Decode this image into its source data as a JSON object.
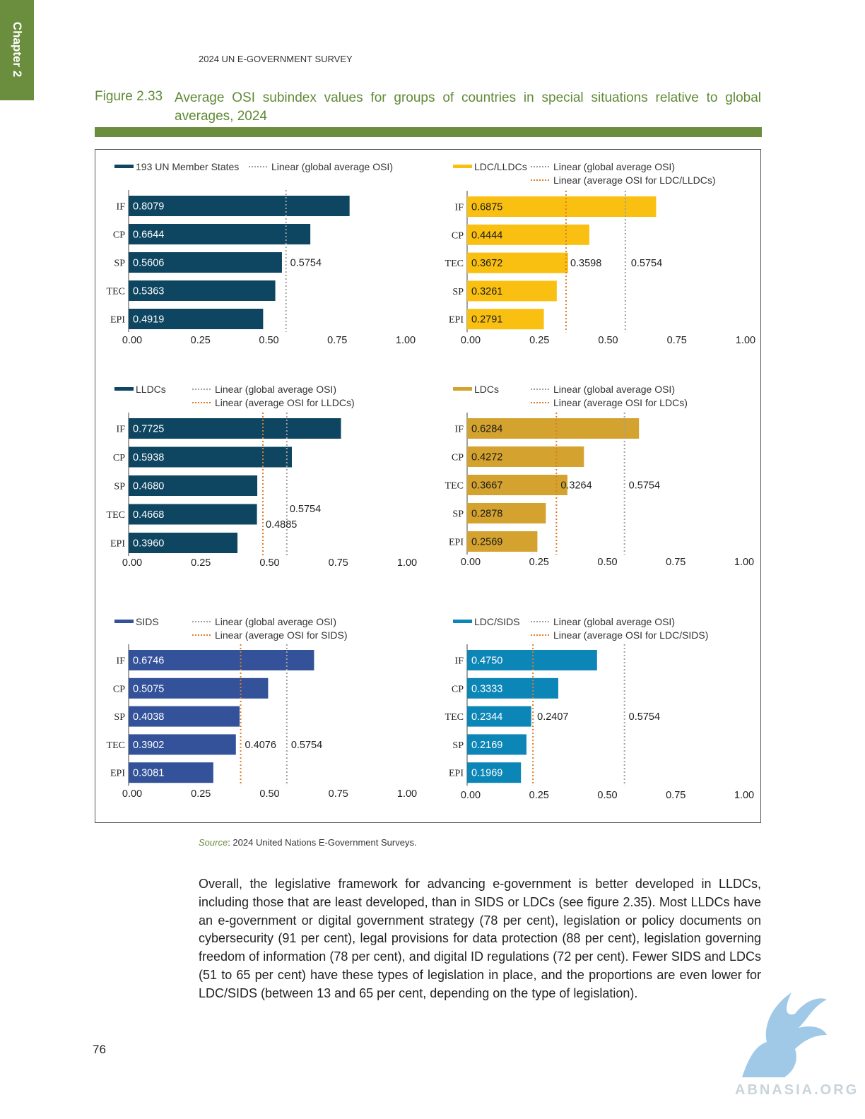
{
  "chapter_label": "Chapter 2",
  "running_head": "2024 UN E-GOVERNMENT SURVEY",
  "figure": {
    "number": "Figure 2.33",
    "title": "Average OSI subindex values for groups of countries in special situations relative to global averages, 2024"
  },
  "source": {
    "label": "Source",
    "text": ": 2024 United Nations E-Government Surveys."
  },
  "body_text": "Overall, the legislative framework for advancing e-government is better developed in LLDCs, including those that are least developed, than in SIDS or LDCs (see figure 2.35). Most LLDCs have an e-government or digital government strategy (78 per cent), legislation or policy documents on cybersecurity (91 per cent), legal provisions for data protection (88 per cent), legislation governing freedom of information (78 per cent), and digital ID regulations (72 per cent). Fewer SIDS and LDCs (51 to 65 per cent) have these types of legislation in place, and the proportions are even lower for LDC/SIDS (between 13 and 65 per cent, depending on the type of legislation).",
  "page_number": "76",
  "watermark": "ABNASIA.ORG",
  "chart_data": [
    {
      "type": "bar",
      "orientation": "horizontal",
      "series_name": "193 UN Member States",
      "color": "#0e4561",
      "categories": [
        "IF",
        "CP",
        "SP",
        "TEC",
        "EPI"
      ],
      "values": [
        0.8079,
        0.6644,
        0.5606,
        0.5363,
        0.4919
      ],
      "value_labels": [
        "0.8079",
        "0.6644",
        "0.5606",
        "0.5363",
        "0.4919"
      ],
      "xlim": [
        0,
        1
      ],
      "xticks": [
        "0.00",
        "0.25",
        "0.50",
        "0.75",
        "1.00"
      ],
      "reference_lines": [
        {
          "name": "Linear (global average OSI)",
          "value": 0.5754,
          "label": "0.5754",
          "color": "#a0a0a0"
        }
      ]
    },
    {
      "type": "bar",
      "orientation": "horizontal",
      "series_name": "LDC/LLDCs",
      "color": "#f9c012",
      "categories": [
        "IF",
        "CP",
        "TEC",
        "SP",
        "EPI"
      ],
      "values": [
        0.6875,
        0.4444,
        0.3672,
        0.3261,
        0.2791
      ],
      "value_labels": [
        "0.6875",
        "0.4444",
        "0.3672",
        "0.3261",
        "0.2791"
      ],
      "xlim": [
        0,
        1
      ],
      "xticks": [
        "0.00",
        "0.25",
        "0.50",
        "0.75",
        "1.00"
      ],
      "reference_lines": [
        {
          "name": "Linear (global average OSI)",
          "value": 0.5754,
          "label": "0.5754",
          "color": "#a0a0a0"
        },
        {
          "name": "Linear (average OSI for LDC/LLDCs)",
          "value": 0.3598,
          "label": "0.3598",
          "color": "#e07b26"
        }
      ]
    },
    {
      "type": "bar",
      "orientation": "horizontal",
      "series_name": "LLDCs",
      "color": "#0e4561",
      "categories": [
        "IF",
        "CP",
        "SP",
        "TEC",
        "EPI"
      ],
      "values": [
        0.7725,
        0.5938,
        0.468,
        0.4668,
        0.396
      ],
      "value_labels": [
        "0.7725",
        "0.5938",
        "0.4680",
        "0.4668",
        "0.3960"
      ],
      "xlim": [
        0,
        1
      ],
      "xticks": [
        "0.00",
        "0.25",
        "0.50",
        "0.75",
        "1.00"
      ],
      "reference_lines": [
        {
          "name": "Linear (global average OSI)",
          "value": 0.5754,
          "label": "0.5754",
          "color": "#a0a0a0"
        },
        {
          "name": "Linear (average OSI for LLDCs)",
          "value": 0.4885,
          "label": "0.4885",
          "color": "#e07b26"
        }
      ]
    },
    {
      "type": "bar",
      "orientation": "horizontal",
      "series_name": "LDCs",
      "color": "#d4a22f",
      "categories": [
        "IF",
        "CP",
        "TEC",
        "SP",
        "EPI"
      ],
      "values": [
        0.6284,
        0.4272,
        0.3667,
        0.2878,
        0.2569
      ],
      "value_labels": [
        "0.6284",
        "0.4272",
        "0.3667",
        "0.2878",
        "0.2569"
      ],
      "xlim": [
        0,
        1
      ],
      "xticks": [
        "0.00",
        "0.25",
        "0.50",
        "0.75",
        "1.00"
      ],
      "reference_lines": [
        {
          "name": "Linear (global average OSI)",
          "value": 0.5754,
          "label": "0.5754",
          "color": "#a0a0a0"
        },
        {
          "name": "Linear (average OSI for LDCs)",
          "value": 0.3264,
          "label": "0.3264",
          "color": "#e07b26"
        }
      ]
    },
    {
      "type": "bar",
      "orientation": "horizontal",
      "series_name": "SIDS",
      "color": "#33529a",
      "categories": [
        "IF",
        "CP",
        "SP",
        "TEC",
        "EPI"
      ],
      "values": [
        0.6746,
        0.5075,
        0.4038,
        0.3902,
        0.3081
      ],
      "value_labels": [
        "0.6746",
        "0.5075",
        "0.4038",
        "0.3902",
        "0.3081"
      ],
      "xlim": [
        0,
        1
      ],
      "xticks": [
        "0.00",
        "0.25",
        "0.50",
        "0.75",
        "1.00"
      ],
      "reference_lines": [
        {
          "name": "Linear (global average OSI)",
          "value": 0.5754,
          "label": "0.5754",
          "color": "#a0a0a0"
        },
        {
          "name": "Linear (average OSI for SIDS)",
          "value": 0.4076,
          "label": "0.4076",
          "color": "#e07b26"
        }
      ]
    },
    {
      "type": "bar",
      "orientation": "horizontal",
      "series_name": "LDC/SIDS",
      "color": "#0c86b7",
      "categories": [
        "IF",
        "CP",
        "TEC",
        "SP",
        "EPI"
      ],
      "values": [
        0.475,
        0.3333,
        0.2344,
        0.2169,
        0.1969
      ],
      "value_labels": [
        "0.4750",
        "0.3333",
        "0.2344",
        "0.2169",
        "0.1969"
      ],
      "xlim": [
        0,
        1
      ],
      "xticks": [
        "0.00",
        "0.25",
        "0.50",
        "0.75",
        "1.00"
      ],
      "reference_lines": [
        {
          "name": "Linear (global average OSI)",
          "value": 0.5754,
          "label": "0.5754",
          "color": "#a0a0a0"
        },
        {
          "name": "Linear (average OSI for LDC/SIDS)",
          "value": 0.2407,
          "label": "0.2407",
          "color": "#e07b26"
        }
      ]
    }
  ]
}
